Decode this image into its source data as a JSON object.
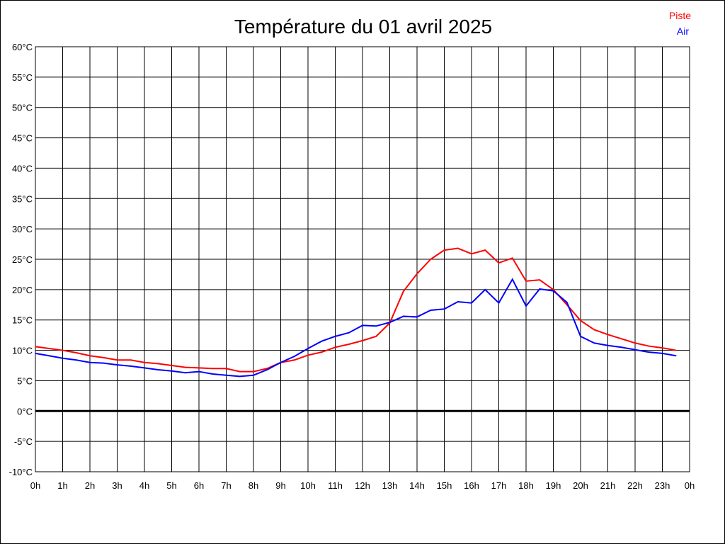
{
  "chart_data": {
    "type": "line",
    "title": "Température du 01 avril 2025",
    "xlabel": "",
    "ylabel": "",
    "xlim": [
      0,
      24
    ],
    "ylim": [
      -10,
      60
    ],
    "grid": true,
    "legend_position": "top-right",
    "x_tick_labels": [
      "0h",
      "1h",
      "2h",
      "3h",
      "4h",
      "5h",
      "6h",
      "7h",
      "8h",
      "9h",
      "10h",
      "11h",
      "12h",
      "13h",
      "14h",
      "15h",
      "16h",
      "17h",
      "18h",
      "19h",
      "20h",
      "21h",
      "22h",
      "23h",
      "0h"
    ],
    "y_ticks": [
      60,
      55,
      50,
      45,
      40,
      35,
      30,
      25,
      20,
      15,
      10,
      5,
      0,
      -5,
      -10
    ],
    "y_tick_labels": [
      "60°C",
      "55°C",
      "50°C",
      "45°C",
      "40°C",
      "35°C",
      "30°C",
      "25°C",
      "20°C",
      "15°C",
      "10°C",
      "5°C",
      "0°C",
      "-5°C",
      "-10°C"
    ],
    "x": [
      0,
      0.5,
      1,
      1.5,
      2,
      2.5,
      3,
      3.5,
      4,
      4.5,
      5,
      5.5,
      6,
      6.5,
      7,
      7.5,
      8,
      8.5,
      9,
      9.5,
      10,
      10.5,
      11,
      11.5,
      12,
      12.5,
      13,
      13.5,
      14,
      14.5,
      15,
      15.5,
      16,
      16.5,
      17,
      17.5,
      18,
      18.5,
      19,
      19.5,
      20,
      20.5,
      21,
      21.5,
      22,
      22.5,
      23,
      23.5
    ],
    "series": [
      {
        "name": "Piste",
        "color": "#ff0000",
        "values": [
          10.6,
          10.3,
          10.0,
          9.6,
          9.1,
          8.8,
          8.4,
          8.4,
          8.0,
          7.8,
          7.5,
          7.2,
          7.1,
          7.0,
          7.0,
          6.5,
          6.5,
          7.0,
          8.0,
          8.4,
          9.2,
          9.7,
          10.5,
          11.0,
          11.6,
          12.3,
          14.5,
          19.7,
          22.6,
          25.0,
          26.5,
          26.8,
          25.9,
          26.5,
          24.4,
          25.2,
          21.4,
          21.6,
          20.0,
          17.5,
          14.9,
          13.4,
          12.6,
          11.9,
          11.2,
          10.7,
          10.4,
          10.0
        ]
      },
      {
        "name": "Air",
        "color": "#0000ff",
        "values": [
          9.5,
          9.1,
          8.7,
          8.4,
          8.0,
          7.9,
          7.6,
          7.4,
          7.1,
          6.8,
          6.6,
          6.3,
          6.5,
          6.1,
          5.9,
          5.7,
          5.9,
          6.8,
          8.0,
          9.0,
          10.3,
          11.5,
          12.3,
          12.9,
          14.1,
          14.0,
          14.6,
          15.6,
          15.5,
          16.6,
          16.8,
          18.0,
          17.8,
          20.0,
          17.8,
          21.7,
          17.3,
          20.1,
          19.8,
          17.9,
          12.3,
          11.2,
          10.8,
          10.5,
          10.1,
          9.7,
          9.5,
          9.1
        ]
      }
    ]
  }
}
